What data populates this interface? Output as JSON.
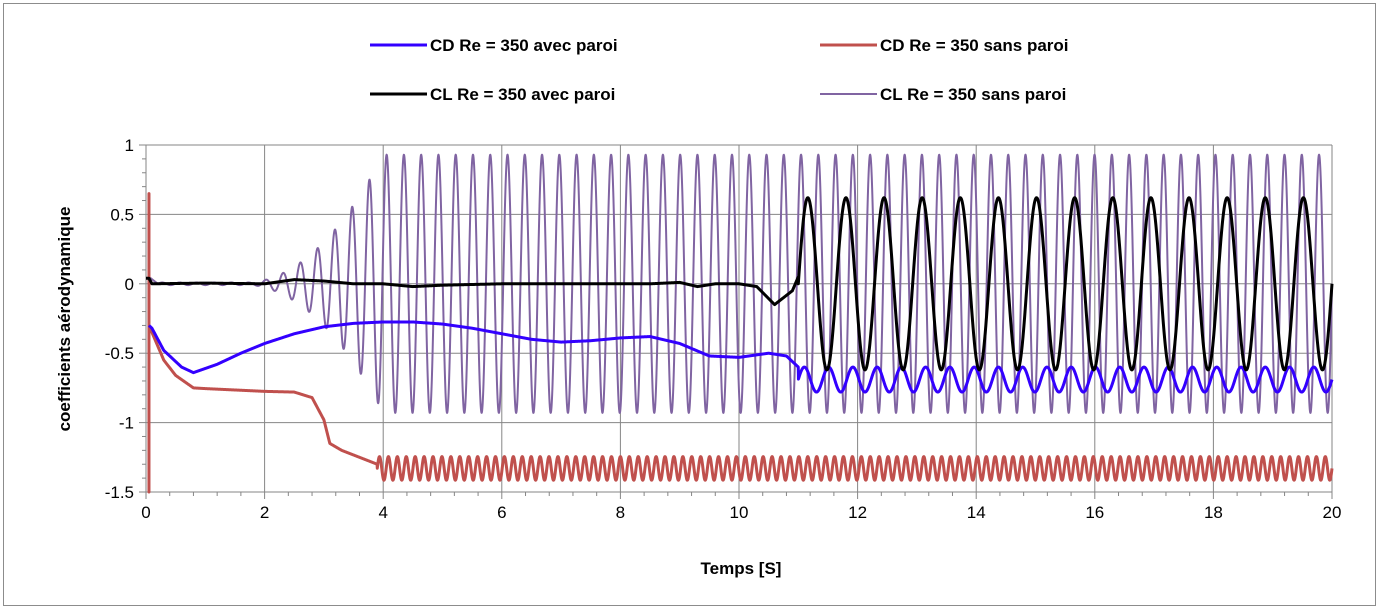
{
  "chart_data": {
    "type": "line",
    "title": "",
    "xlabel": "Temps [S]",
    "ylabel": "coefficients  aérodynamique",
    "xlim": [
      0,
      20
    ],
    "ylim": [
      -1.5,
      1
    ],
    "x_ticks": [
      "0",
      "2",
      "4",
      "6",
      "8",
      "10",
      "12",
      "14",
      "16",
      "18",
      "20"
    ],
    "y_ticks": [
      "1",
      "0.5",
      "0",
      "-0.5",
      "-1",
      "-1.5"
    ],
    "grid": true,
    "legend_position": "top",
    "series": [
      {
        "name": "CD Re = 350 avec paroi",
        "color": "#3300ff",
        "line_width": 3,
        "points": [
          [
            0.05,
            -0.3
          ],
          [
            0.1,
            -0.32
          ],
          [
            0.3,
            -0.48
          ],
          [
            0.6,
            -0.6
          ],
          [
            0.8,
            -0.64
          ],
          [
            1.2,
            -0.58
          ],
          [
            1.6,
            -0.5
          ],
          [
            2.0,
            -0.43
          ],
          [
            2.5,
            -0.36
          ],
          [
            3.0,
            -0.31
          ],
          [
            3.5,
            -0.285
          ],
          [
            4.0,
            -0.275
          ],
          [
            4.5,
            -0.275
          ],
          [
            5.0,
            -0.29
          ],
          [
            5.5,
            -0.32
          ],
          [
            6.0,
            -0.36
          ],
          [
            6.5,
            -0.4
          ],
          [
            7.0,
            -0.42
          ],
          [
            7.5,
            -0.41
          ],
          [
            8.0,
            -0.39
          ],
          [
            8.5,
            -0.38
          ],
          [
            9.0,
            -0.43
          ],
          [
            9.5,
            -0.52
          ],
          [
            10.0,
            -0.53
          ],
          [
            10.5,
            -0.5
          ],
          [
            10.8,
            -0.52
          ],
          [
            11.0,
            -0.6
          ]
        ],
        "oscillation": {
          "start": 11.0,
          "end": 20.0,
          "mean": -0.69,
          "amplitude": 0.09,
          "cycles": 22
        }
      },
      {
        "name": "CD Re = 350 sans paroi",
        "color": "#c0504d",
        "line_width": 3,
        "points": [
          [
            0.05,
            -0.3
          ],
          [
            0.15,
            -0.4
          ],
          [
            0.3,
            -0.55
          ],
          [
            0.5,
            -0.66
          ],
          [
            0.8,
            -0.75
          ],
          [
            1.0,
            -0.755
          ],
          [
            1.5,
            -0.765
          ],
          [
            2.0,
            -0.775
          ],
          [
            2.5,
            -0.78
          ],
          [
            2.8,
            -0.82
          ],
          [
            3.0,
            -0.98
          ],
          [
            3.1,
            -1.15
          ],
          [
            3.3,
            -1.2
          ],
          [
            3.6,
            -1.25
          ],
          [
            3.9,
            -1.3
          ]
        ],
        "spike": {
          "x": 0.05,
          "low": -1.5,
          "high": 0.65
        },
        "oscillation": {
          "start": 3.9,
          "end": 20.0,
          "mean": -1.33,
          "amplitude": 0.085,
          "cycles": 107
        }
      },
      {
        "name": "CL Re = 350 avec paroi",
        "color": "#000000",
        "line_width": 3,
        "points": [
          [
            0.0,
            0.04
          ],
          [
            0.05,
            0.04
          ],
          [
            0.1,
            0.0
          ],
          [
            1.0,
            0.005
          ],
          [
            2.0,
            0.0
          ],
          [
            2.5,
            0.03
          ],
          [
            3.0,
            0.02
          ],
          [
            3.5,
            0.0
          ],
          [
            4.0,
            0.0
          ],
          [
            4.5,
            -0.02
          ],
          [
            5.0,
            -0.01
          ],
          [
            6.0,
            0.0
          ],
          [
            7.0,
            0.0
          ],
          [
            8.0,
            0.0
          ],
          [
            8.5,
            0.0
          ],
          [
            9.0,
            0.01
          ],
          [
            9.3,
            -0.02
          ],
          [
            9.6,
            0.0
          ],
          [
            10.0,
            0.0
          ],
          [
            10.3,
            -0.02
          ],
          [
            10.6,
            -0.15
          ],
          [
            10.9,
            -0.05
          ],
          [
            11.0,
            0.05
          ]
        ],
        "oscillation": {
          "start": 11.0,
          "end": 20.0,
          "mean": 0.0,
          "amplitude": 0.62,
          "cycles": 14
        }
      },
      {
        "name": "CL Re = 350 sans paroi",
        "color": "#8064a2",
        "line_width": 2,
        "spike": {
          "x": 0.05,
          "low": -0.5,
          "high": 0.05
        },
        "oscillation": {
          "start": 0.2,
          "end": 20.0,
          "mean": 0.0,
          "amplitude": 0.93,
          "cycles": 68,
          "growth_start": 1.5,
          "growth_end": 4.0
        }
      }
    ]
  }
}
